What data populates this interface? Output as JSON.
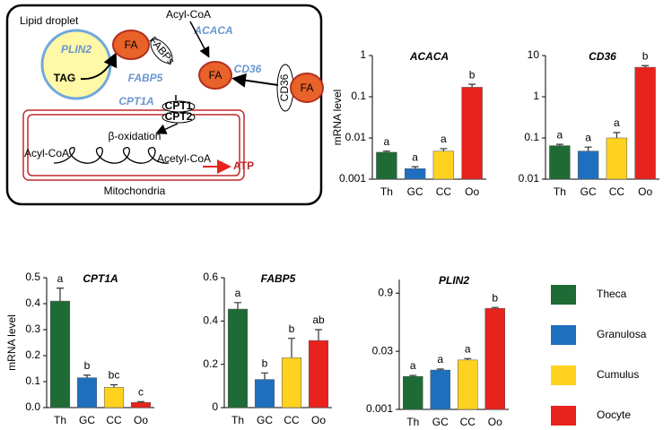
{
  "diagram": {
    "labels": [
      "Lipid droplet",
      "PLIN2",
      "TAG",
      "FA",
      "FABPs",
      "FABP5",
      "Acyl-CoA",
      "ACACA",
      "FA",
      "CD36",
      "CD36",
      "FA",
      "CPT1A",
      "CPT1",
      "CPT2",
      "β-oxidation",
      "Acyl-CoA",
      "Acetyl-CoA",
      "ATP",
      "Mitochondria"
    ]
  },
  "legend": {
    "items": [
      {
        "name": "Theca",
        "color": "#1e6b35"
      },
      {
        "name": "Granulosa",
        "color": "#1f6fbf"
      },
      {
        "name": "Cumulus",
        "color": "#ffd21f"
      },
      {
        "name": "Oocyte",
        "color": "#e8221c"
      }
    ]
  },
  "chart_data": [
    {
      "type": "bar",
      "title": "ACACA",
      "y_label": "mRNA level",
      "log_scale": true,
      "categories": [
        "Th",
        "GC",
        "CC",
        "Oo"
      ],
      "values": [
        0.0045,
        0.0018,
        0.0048,
        0.17
      ],
      "errors": [
        0.0003,
        0.0002,
        0.0007,
        0.03
      ],
      "labels": [
        "a",
        "a",
        "a",
        "b"
      ],
      "ylim": [
        0.001,
        1
      ],
      "yticks": [
        0.001,
        0.01,
        0.1,
        1
      ]
    },
    {
      "type": "bar",
      "title": "CD36",
      "log_scale": true,
      "categories": [
        "Th",
        "GC",
        "CC",
        "Oo"
      ],
      "values": [
        0.065,
        0.048,
        0.1,
        5.2
      ],
      "errors": [
        0.005,
        0.012,
        0.035,
        0.5
      ],
      "labels": [
        "a",
        "a",
        "a",
        "b"
      ],
      "ylim": [
        0.01,
        10
      ],
      "yticks": [
        0.01,
        0.1,
        1,
        10
      ]
    },
    {
      "type": "bar",
      "title": "CPT1A",
      "y_label": "mRNA level",
      "log_scale": false,
      "categories": [
        "Th",
        "GC",
        "CC",
        "Oo"
      ],
      "values": [
        0.41,
        0.115,
        0.078,
        0.02
      ],
      "errors": [
        0.05,
        0.01,
        0.01,
        0.003
      ],
      "labels": [
        "a",
        "b",
        "bc",
        "c"
      ],
      "ylim": [
        0,
        0.5
      ],
      "yticks": [
        {
          "value": 0,
          "label": "0.0"
        },
        0.1,
        0.2,
        0.3,
        0.4,
        0.5
      ]
    },
    {
      "type": "bar",
      "title": "FABP5",
      "log_scale": false,
      "categories": [
        "Th",
        "GC",
        "CC",
        "Oo"
      ],
      "values": [
        0.455,
        0.13,
        0.23,
        0.31
      ],
      "errors": [
        0.03,
        0.03,
        0.09,
        0.05
      ],
      "labels": [
        "a",
        "b",
        "b",
        "ab"
      ],
      "ylim": [
        0,
        0.6
      ],
      "yticks": [
        0,
        0.2,
        0.4,
        0.6
      ]
    },
    {
      "type": "bar",
      "title": "PLIN2",
      "log_scale": true,
      "categories": [
        "Th",
        "GC",
        "CC",
        "Oo"
      ],
      "values": [
        0.0069,
        0.01,
        0.018,
        0.37
      ],
      "errors": [
        0.0004,
        0.0006,
        0.0015,
        0.02
      ],
      "labels": [
        "a",
        "a",
        "a",
        "b"
      ],
      "ylim": [
        0.001,
        2
      ],
      "yticks": [
        0.001,
        0.03,
        0.9
      ]
    }
  ]
}
